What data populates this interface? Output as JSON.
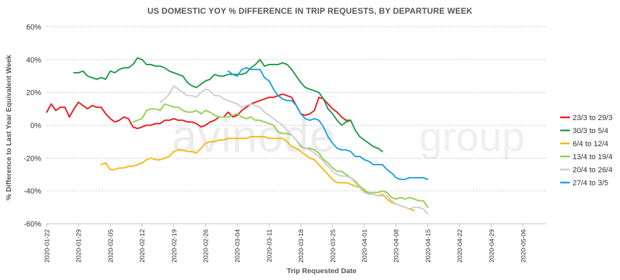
{
  "chart_data": {
    "type": "line",
    "title": "US DOMESTIC YOY % DIFFERENCE IN TRIP REQUESTS, BY DEPARTURE WEEK",
    "xlabel": "Trip Requested Date",
    "ylabel": "% Difference to Last Year Equivalent Week",
    "x_range": [
      "2020-01-22",
      "2020-05-11"
    ],
    "ylim": [
      -60,
      60
    ],
    "y_ticks": [
      "60%",
      "40%",
      "20%",
      "0%",
      "-20%",
      "-40%",
      "-60%"
    ],
    "x_ticks": [
      "2020-01-22",
      "2020-01-29",
      "2020-02-05",
      "2020-02-12",
      "2020-02-19",
      "2020-02-26",
      "2020-03-04",
      "2020-03-11",
      "2020-03-18",
      "2020-03-25",
      "2020-04-01",
      "2020-04-08",
      "2020-04-15",
      "2020-04-22",
      "2020-04-29",
      "2020-05-06"
    ],
    "grid": true,
    "legend_position": "right",
    "series": [
      {
        "name": "23/3 to 29/3",
        "color": "#e8191f",
        "x": [
          "2020-01-22",
          "2020-01-23",
          "2020-01-24",
          "2020-01-25",
          "2020-01-26",
          "2020-01-27",
          "2020-01-28",
          "2020-01-29",
          "2020-01-30",
          "2020-01-31",
          "2020-02-01",
          "2020-02-02",
          "2020-02-03",
          "2020-02-04",
          "2020-02-05",
          "2020-02-06",
          "2020-02-07",
          "2020-02-08",
          "2020-02-09",
          "2020-02-10",
          "2020-02-11",
          "2020-02-12",
          "2020-02-13",
          "2020-02-14",
          "2020-02-15",
          "2020-02-16",
          "2020-02-17",
          "2020-02-18",
          "2020-02-19",
          "2020-02-20",
          "2020-02-21",
          "2020-02-22",
          "2020-02-23",
          "2020-02-24",
          "2020-02-25",
          "2020-02-26",
          "2020-02-27",
          "2020-02-28",
          "2020-02-29",
          "2020-03-01",
          "2020-03-02",
          "2020-03-03",
          "2020-03-04",
          "2020-03-05",
          "2020-03-06",
          "2020-03-07",
          "2020-03-08",
          "2020-03-09",
          "2020-03-10",
          "2020-03-11",
          "2020-03-12",
          "2020-03-13",
          "2020-03-14",
          "2020-03-15",
          "2020-03-16",
          "2020-03-17",
          "2020-03-18",
          "2020-03-19",
          "2020-03-20",
          "2020-03-21",
          "2020-03-22",
          "2020-03-23",
          "2020-03-24",
          "2020-03-25",
          "2020-03-26",
          "2020-03-27",
          "2020-03-28",
          "2020-03-29"
        ],
        "y": [
          8,
          13,
          9,
          11,
          11,
          5,
          10,
          14,
          12,
          10,
          12,
          11,
          11,
          7,
          4,
          2,
          3,
          5,
          4,
          -1,
          -2,
          -1,
          0,
          0,
          1,
          1,
          3,
          3,
          4,
          3,
          3,
          2,
          2,
          1,
          -1,
          0,
          2,
          3,
          5,
          5,
          8,
          5,
          6,
          9,
          11,
          13,
          14,
          15,
          16,
          17,
          17,
          18,
          19,
          18,
          17,
          12,
          7,
          6,
          7,
          9,
          17,
          16,
          13,
          10,
          8,
          5,
          3,
          3
        ]
      },
      {
        "name": "30/3 to 5/4",
        "color": "#1e9b48",
        "x": [
          "2020-01-28",
          "2020-01-29",
          "2020-01-30",
          "2020-01-31",
          "2020-02-01",
          "2020-02-02",
          "2020-02-03",
          "2020-02-04",
          "2020-02-05",
          "2020-02-06",
          "2020-02-07",
          "2020-02-08",
          "2020-02-09",
          "2020-02-10",
          "2020-02-11",
          "2020-02-12",
          "2020-02-13",
          "2020-02-14",
          "2020-02-15",
          "2020-02-16",
          "2020-02-17",
          "2020-02-18",
          "2020-02-19",
          "2020-02-20",
          "2020-02-21",
          "2020-02-22",
          "2020-02-23",
          "2020-02-24",
          "2020-02-25",
          "2020-02-26",
          "2020-02-27",
          "2020-02-28",
          "2020-02-29",
          "2020-03-01",
          "2020-03-02",
          "2020-03-03",
          "2020-03-04",
          "2020-03-05",
          "2020-03-06",
          "2020-03-07",
          "2020-03-08",
          "2020-03-09",
          "2020-03-10",
          "2020-03-11",
          "2020-03-12",
          "2020-03-13",
          "2020-03-14",
          "2020-03-15",
          "2020-03-16",
          "2020-03-17",
          "2020-03-18",
          "2020-03-19",
          "2020-03-20",
          "2020-03-21",
          "2020-03-22",
          "2020-03-23",
          "2020-03-24",
          "2020-03-25",
          "2020-03-26",
          "2020-03-27",
          "2020-03-28",
          "2020-03-29",
          "2020-03-30",
          "2020-03-31",
          "2020-04-01",
          "2020-04-02",
          "2020-04-03",
          "2020-04-04",
          "2020-04-05"
        ],
        "y": [
          32,
          32,
          33,
          30,
          29,
          28,
          29,
          28,
          33,
          32,
          34,
          35,
          35,
          37,
          41,
          40,
          37,
          37,
          36,
          36,
          35,
          33,
          32,
          31,
          30,
          26,
          24,
          23,
          25,
          27,
          28,
          31,
          30,
          30,
          31,
          31,
          31,
          31,
          32,
          35,
          37,
          40,
          36,
          37,
          37,
          37,
          38,
          37,
          34,
          30,
          26,
          23,
          22,
          21,
          20,
          16,
          10,
          7,
          3,
          0,
          2,
          3,
          -3,
          -7,
          -9,
          -11,
          -13,
          -14,
          -16
        ]
      },
      {
        "name": "6/4 to 12/4",
        "color": "#f5b90f",
        "x": [
          "2020-02-03",
          "2020-02-04",
          "2020-02-05",
          "2020-02-06",
          "2020-02-07",
          "2020-02-08",
          "2020-02-09",
          "2020-02-10",
          "2020-02-11",
          "2020-02-12",
          "2020-02-13",
          "2020-02-14",
          "2020-02-15",
          "2020-02-16",
          "2020-02-17",
          "2020-02-18",
          "2020-02-19",
          "2020-02-20",
          "2020-02-21",
          "2020-02-22",
          "2020-02-23",
          "2020-02-24",
          "2020-02-25",
          "2020-02-26",
          "2020-02-27",
          "2020-02-28",
          "2020-02-29",
          "2020-03-01",
          "2020-03-02",
          "2020-03-03",
          "2020-03-04",
          "2020-03-05",
          "2020-03-06",
          "2020-03-07",
          "2020-03-08",
          "2020-03-09",
          "2020-03-10",
          "2020-03-11",
          "2020-03-12",
          "2020-03-13",
          "2020-03-14",
          "2020-03-15",
          "2020-03-16",
          "2020-03-17",
          "2020-03-18",
          "2020-03-19",
          "2020-03-20",
          "2020-03-21",
          "2020-03-22",
          "2020-03-23",
          "2020-03-24",
          "2020-03-25",
          "2020-03-26",
          "2020-03-27",
          "2020-03-28",
          "2020-03-29",
          "2020-03-30",
          "2020-03-31",
          "2020-04-01",
          "2020-04-02",
          "2020-04-03",
          "2020-04-04",
          "2020-04-05",
          "2020-04-06",
          "2020-04-07",
          "2020-04-08",
          "2020-04-09",
          "2020-04-10",
          "2020-04-11",
          "2020-04-12"
        ],
        "y": [
          -24,
          -23,
          -27,
          -27,
          -26,
          -26,
          -25,
          -25,
          -24,
          -23,
          -21,
          -20,
          -21,
          -21,
          -20,
          -19,
          -16,
          -15,
          -15,
          -16,
          -16,
          -17,
          -14,
          -11,
          -10,
          -10,
          -9,
          -9,
          -8,
          -8,
          -8,
          -8,
          -8,
          -7,
          -7,
          -7,
          -7,
          -8,
          -8,
          -8,
          -8,
          -10,
          -13,
          -14,
          -16,
          -18,
          -20,
          -21,
          -24,
          -27,
          -30,
          -33,
          -35,
          -35,
          -35,
          -36,
          -37,
          -38,
          -39,
          -42,
          -42,
          -43,
          -42,
          -45,
          -47,
          -48,
          -49,
          -50,
          -51,
          -52
        ]
      },
      {
        "name": "13/4 to 19/4",
        "color": "#92d050",
        "x": [
          "2020-02-10",
          "2020-02-11",
          "2020-02-12",
          "2020-02-13",
          "2020-02-14",
          "2020-02-15",
          "2020-02-16",
          "2020-02-17",
          "2020-02-18",
          "2020-02-19",
          "2020-02-20",
          "2020-02-21",
          "2020-02-22",
          "2020-02-23",
          "2020-02-24",
          "2020-02-25",
          "2020-02-26",
          "2020-02-27",
          "2020-02-28",
          "2020-02-29",
          "2020-03-01",
          "2020-03-02",
          "2020-03-03",
          "2020-03-04",
          "2020-03-05",
          "2020-03-06",
          "2020-03-07",
          "2020-03-08",
          "2020-03-09",
          "2020-03-10",
          "2020-03-11",
          "2020-03-12",
          "2020-03-13",
          "2020-03-14",
          "2020-03-15",
          "2020-03-16",
          "2020-03-17",
          "2020-03-18",
          "2020-03-19",
          "2020-03-20",
          "2020-03-21",
          "2020-03-22",
          "2020-03-23",
          "2020-03-24",
          "2020-03-25",
          "2020-03-26",
          "2020-03-27",
          "2020-03-28",
          "2020-03-29",
          "2020-03-30",
          "2020-03-31",
          "2020-04-01",
          "2020-04-02",
          "2020-04-03",
          "2020-04-04",
          "2020-04-05",
          "2020-04-06",
          "2020-04-07",
          "2020-04-08",
          "2020-04-09",
          "2020-04-10",
          "2020-04-11",
          "2020-04-12",
          "2020-04-13",
          "2020-04-14",
          "2020-04-15"
        ],
        "y": [
          2,
          3,
          4,
          9,
          10,
          10,
          9,
          13,
          12,
          11,
          11,
          9,
          8,
          8,
          9,
          7,
          9,
          8,
          6,
          5,
          5,
          5,
          6,
          7,
          5,
          4,
          5,
          3,
          3,
          2,
          1,
          0,
          -4,
          -5,
          -5,
          -6,
          -9,
          -13,
          -14,
          -14,
          -15,
          -17,
          -21,
          -23,
          -26,
          -28,
          -28,
          -30,
          -32,
          -34,
          -37,
          -40,
          -41,
          -41,
          -41,
          -40,
          -41,
          -44,
          -45,
          -44,
          -45,
          -44,
          -45,
          -46,
          -46,
          -50
        ]
      },
      {
        "name": "20/4 to 26/4",
        "color": "#cdcdcd",
        "x": [
          "2020-02-16",
          "2020-02-17",
          "2020-02-18",
          "2020-02-19",
          "2020-02-20",
          "2020-02-21",
          "2020-02-22",
          "2020-02-23",
          "2020-02-24",
          "2020-02-25",
          "2020-02-26",
          "2020-02-27",
          "2020-02-28",
          "2020-02-29",
          "2020-03-01",
          "2020-03-02",
          "2020-03-03",
          "2020-03-04",
          "2020-03-05",
          "2020-03-06",
          "2020-03-07",
          "2020-03-08",
          "2020-03-09",
          "2020-03-10",
          "2020-03-11",
          "2020-03-12",
          "2020-03-13",
          "2020-03-14",
          "2020-03-15",
          "2020-03-16",
          "2020-03-17",
          "2020-03-18",
          "2020-03-19",
          "2020-03-20",
          "2020-03-21",
          "2020-03-22",
          "2020-03-23",
          "2020-03-24",
          "2020-03-25",
          "2020-03-26",
          "2020-03-27",
          "2020-03-28",
          "2020-03-29",
          "2020-03-30",
          "2020-03-31",
          "2020-04-01",
          "2020-04-02",
          "2020-04-03",
          "2020-04-04",
          "2020-04-05",
          "2020-04-06",
          "2020-04-07",
          "2020-04-08",
          "2020-04-09",
          "2020-04-10",
          "2020-04-11",
          "2020-04-12",
          "2020-04-13",
          "2020-04-14",
          "2020-04-15"
        ],
        "y": [
          14,
          16,
          19,
          24,
          22,
          20,
          18,
          18,
          17,
          20,
          22,
          21,
          18,
          18,
          16,
          15,
          14,
          13,
          11,
          12,
          13,
          12,
          11,
          8,
          6,
          4,
          2,
          0,
          -3,
          -6,
          -9,
          -12,
          -14,
          -15,
          -17,
          -19,
          -22,
          -25,
          -28,
          -30,
          -31,
          -31,
          -32,
          -35,
          -38,
          -41,
          -42,
          -42,
          -43,
          -43,
          -43,
          -46,
          -48,
          -49,
          -50,
          -51,
          -50,
          -50,
          -51,
          -54
        ]
      },
      {
        "name": "27/4 to 3/5",
        "color": "#1ea0e0",
        "x": [
          "2020-03-02",
          "2020-03-03",
          "2020-03-04",
          "2020-03-05",
          "2020-03-06",
          "2020-03-07",
          "2020-03-08",
          "2020-03-09",
          "2020-03-10",
          "2020-03-11",
          "2020-03-12",
          "2020-03-13",
          "2020-03-14",
          "2020-03-15",
          "2020-03-16",
          "2020-03-17",
          "2020-03-18",
          "2020-03-19",
          "2020-03-20",
          "2020-03-21",
          "2020-03-22",
          "2020-03-23",
          "2020-03-24",
          "2020-03-25",
          "2020-03-26",
          "2020-03-27",
          "2020-03-28",
          "2020-03-29",
          "2020-03-30",
          "2020-03-31",
          "2020-04-01",
          "2020-04-02",
          "2020-04-03",
          "2020-04-04",
          "2020-04-05",
          "2020-04-06",
          "2020-04-07",
          "2020-04-08",
          "2020-04-09",
          "2020-04-10",
          "2020-04-11",
          "2020-04-12",
          "2020-04-13",
          "2020-04-14",
          "2020-04-15"
        ],
        "y": [
          33,
          31,
          30,
          34,
          35,
          34,
          34,
          34,
          29,
          27,
          22,
          18,
          16,
          15,
          15,
          12,
          7,
          4,
          3,
          4,
          3,
          -1,
          -7,
          -11,
          -14,
          -15,
          -15,
          -16,
          -19,
          -19,
          -21,
          -22,
          -24,
          -24,
          -24,
          -27,
          -29,
          -32,
          -33,
          -33,
          -32,
          -32,
          -32,
          -32,
          -33
        ]
      }
    ]
  }
}
